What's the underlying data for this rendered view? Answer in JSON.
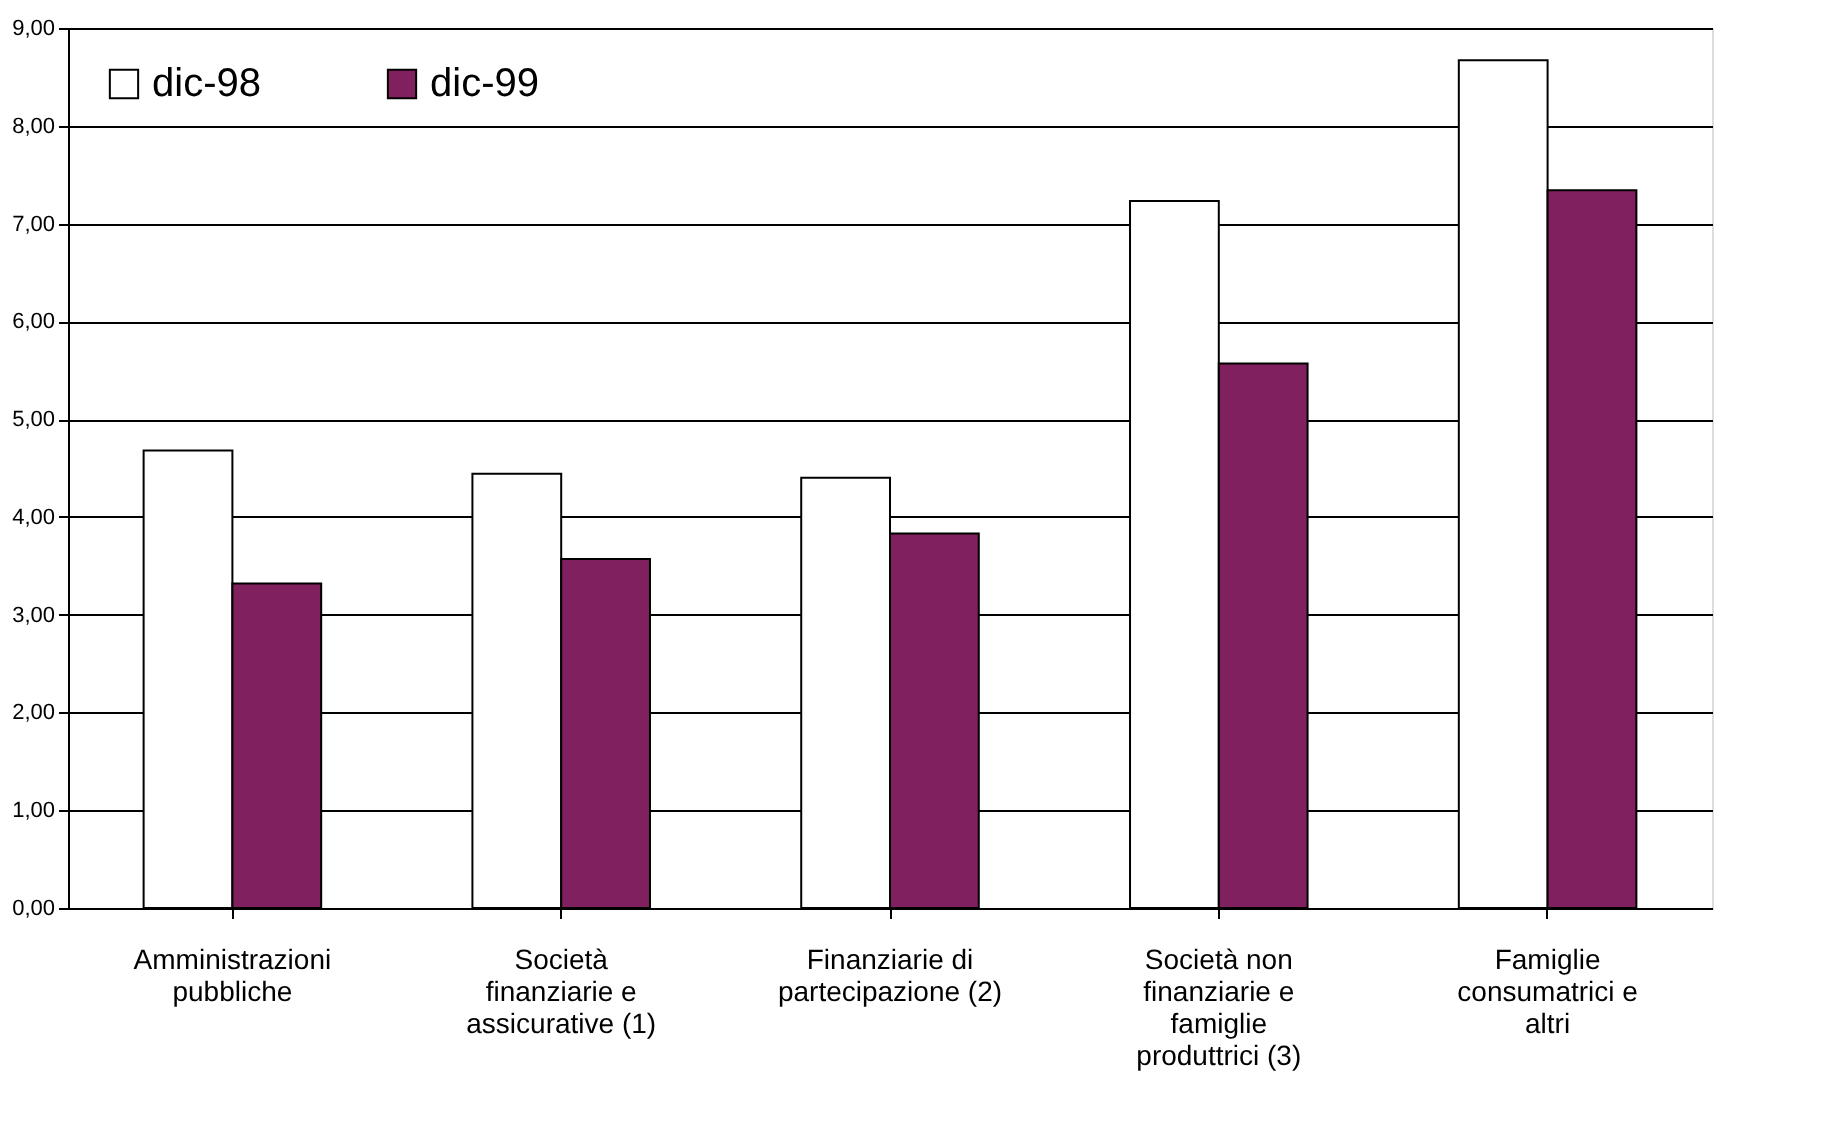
{
  "chart_data": {
    "type": "bar",
    "categories": [
      "Amministrazioni pubbliche",
      "Società finanziarie e assicurative (1)",
      "Finanziarie di partecipazione (2)",
      "Società non finanziarie e famiglie produttrici (3)",
      "Famiglie consumatrici e altri"
    ],
    "series": [
      {
        "name": "dic-98",
        "color": "#ffffff",
        "values": [
          4.68,
          4.44,
          4.4,
          7.23,
          8.67
        ]
      },
      {
        "name": "dic-99",
        "color": "#80205e",
        "values": [
          3.32,
          3.57,
          3.83,
          5.57,
          7.34
        ]
      }
    ],
    "ylim": [
      0,
      9
    ],
    "yticks": [
      {
        "value": 0,
        "label": "0,00"
      },
      {
        "value": 1,
        "label": "1,00"
      },
      {
        "value": 2,
        "label": "2,00"
      },
      {
        "value": 3,
        "label": "3,00"
      },
      {
        "value": 4,
        "label": "4,00"
      },
      {
        "value": 5,
        "label": "5,00"
      },
      {
        "value": 6,
        "label": "6,00"
      },
      {
        "value": 7,
        "label": "7,00"
      },
      {
        "value": 8,
        "label": "8,00"
      },
      {
        "value": 9,
        "label": "9,00"
      }
    ],
    "grid": "y",
    "legend": "top left"
  }
}
